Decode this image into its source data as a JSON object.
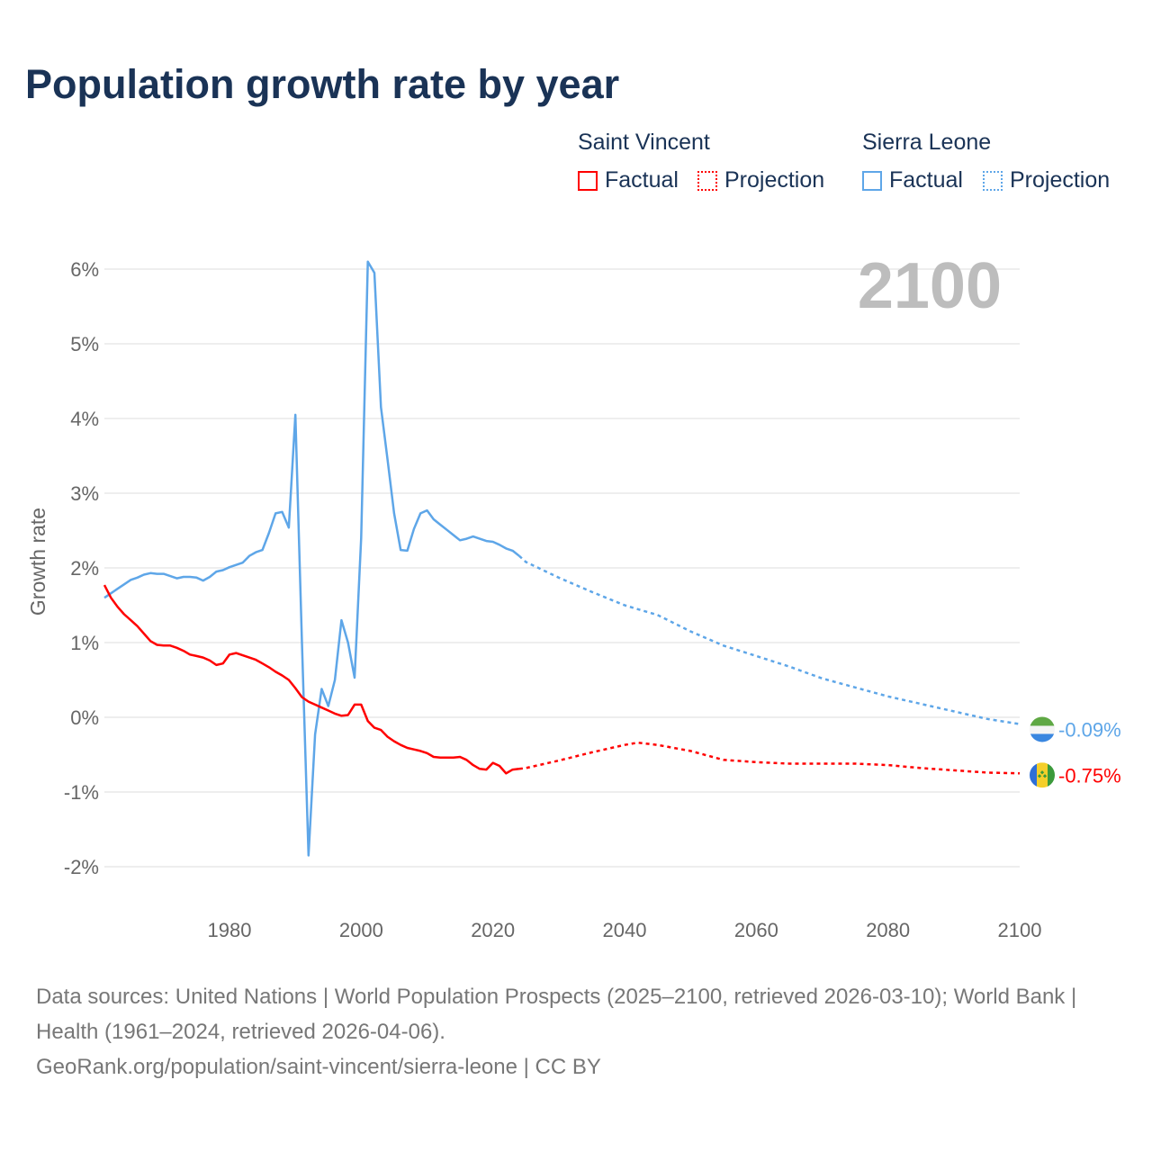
{
  "title": "Population growth rate by year",
  "legend": {
    "groups": [
      {
        "name": "Saint Vincent",
        "factual": "Factual",
        "projection": "Projection",
        "color": "#ff0000"
      },
      {
        "name": "Sierra Leone",
        "factual": "Factual",
        "projection": "Projection",
        "color": "#5ea6e8"
      }
    ]
  },
  "year_label": "2100",
  "source_lines": [
    "Data sources: United Nations | World Population Prospects (2025–2100, retrieved 2026-03-10); World Bank | Health (1961–2024, retrieved 2026-04-06).",
    "GeoRank.org/population/saint-vincent/sierra-leone | CC BY"
  ],
  "chart_data": {
    "type": "line",
    "title": "Population growth rate by year",
    "xlabel": "",
    "ylabel": "Growth rate",
    "xlim": [
      1961,
      2100
    ],
    "ylim": [
      -2.4,
      6.2
    ],
    "x_ticks": [
      1980,
      2000,
      2020,
      2040,
      2060,
      2080,
      2100
    ],
    "y_ticks": [
      -2,
      -1,
      0,
      1,
      2,
      3,
      4,
      5,
      6
    ],
    "y_tick_labels": [
      "-2%",
      "-1%",
      "0%",
      "1%",
      "2%",
      "3%",
      "4%",
      "5%",
      "6%"
    ],
    "grid": true,
    "legend_position": "top-right",
    "series": [
      {
        "name": "Sierra Leone",
        "color": "#5ea6e8",
        "end_label": "-0.09%",
        "factual": {
          "x": [
            1961,
            1962,
            1963,
            1964,
            1965,
            1966,
            1967,
            1968,
            1969,
            1970,
            1971,
            1972,
            1973,
            1974,
            1975,
            1976,
            1977,
            1978,
            1979,
            1980,
            1981,
            1982,
            1983,
            1984,
            1985,
            1986,
            1987,
            1988,
            1989,
            1990,
            1991,
            1992,
            1993,
            1994,
            1995,
            1996,
            1997,
            1998,
            1999,
            2000,
            2001,
            2002,
            2003,
            2004,
            2005,
            2006,
            2007,
            2008,
            2009,
            2010,
            2011,
            2012,
            2013,
            2014,
            2015,
            2016,
            2017,
            2018,
            2019,
            2020,
            2021,
            2022,
            2023,
            2024
          ],
          "y": [
            1.6,
            1.66,
            1.72,
            1.78,
            1.84,
            1.87,
            1.91,
            1.93,
            1.92,
            1.92,
            1.89,
            1.86,
            1.88,
            1.88,
            1.87,
            1.83,
            1.88,
            1.95,
            1.97,
            2.01,
            2.04,
            2.07,
            2.16,
            2.21,
            2.24,
            2.47,
            2.73,
            2.75,
            2.54,
            4.05,
            1.0,
            -1.85,
            -0.23,
            0.38,
            0.15,
            0.5,
            1.3,
            1.0,
            0.53,
            2.4,
            6.1,
            5.95,
            4.15,
            3.45,
            2.73,
            2.24,
            2.23,
            2.52,
            2.73,
            2.77,
            2.65,
            2.58,
            2.51,
            2.44,
            2.37,
            2.39,
            2.42,
            2.39,
            2.36,
            2.35,
            2.31,
            2.26,
            2.23,
            2.16
          ]
        },
        "projection": {
          "x": [
            2024,
            2025,
            2030,
            2035,
            2040,
            2045,
            2050,
            2055,
            2060,
            2065,
            2070,
            2075,
            2080,
            2085,
            2090,
            2095,
            2100
          ],
          "y": [
            2.16,
            2.08,
            1.87,
            1.68,
            1.5,
            1.37,
            1.15,
            0.96,
            0.82,
            0.68,
            0.52,
            0.4,
            0.28,
            0.18,
            0.08,
            -0.02,
            -0.09
          ]
        }
      },
      {
        "name": "Saint Vincent",
        "color": "#ff0000",
        "end_label": "-0.75%",
        "factual": {
          "x": [
            1961,
            1962,
            1963,
            1964,
            1965,
            1966,
            1967,
            1968,
            1969,
            1970,
            1971,
            1972,
            1973,
            1974,
            1975,
            1976,
            1977,
            1978,
            1979,
            1980,
            1981,
            1982,
            1983,
            1984,
            1985,
            1986,
            1987,
            1988,
            1989,
            1990,
            1991,
            1992,
            1993,
            1994,
            1995,
            1996,
            1997,
            1998,
            1999,
            2000,
            2001,
            2002,
            2003,
            2004,
            2005,
            2006,
            2007,
            2008,
            2009,
            2010,
            2011,
            2012,
            2013,
            2014,
            2015,
            2016,
            2017,
            2018,
            2019,
            2020,
            2021,
            2022,
            2023,
            2024
          ],
          "y": [
            1.77,
            1.6,
            1.48,
            1.38,
            1.3,
            1.22,
            1.12,
            1.02,
            0.97,
            0.96,
            0.96,
            0.93,
            0.89,
            0.84,
            0.82,
            0.8,
            0.76,
            0.7,
            0.72,
            0.84,
            0.86,
            0.83,
            0.8,
            0.77,
            0.72,
            0.67,
            0.61,
            0.56,
            0.5,
            0.39,
            0.27,
            0.21,
            0.17,
            0.13,
            0.09,
            0.05,
            0.02,
            0.03,
            0.17,
            0.17,
            -0.05,
            -0.14,
            -0.17,
            -0.26,
            -0.32,
            -0.37,
            -0.41,
            -0.43,
            -0.45,
            -0.48,
            -0.53,
            -0.54,
            -0.54,
            -0.54,
            -0.53,
            -0.57,
            -0.64,
            -0.69,
            -0.7,
            -0.61,
            -0.65,
            -0.75,
            -0.7,
            -0.69
          ]
        },
        "projection": {
          "x": [
            2024,
            2025,
            2030,
            2035,
            2040,
            2042,
            2045,
            2050,
            2055,
            2060,
            2065,
            2070,
            2075,
            2080,
            2085,
            2090,
            2095,
            2100
          ],
          "y": [
            -0.69,
            -0.68,
            -0.58,
            -0.47,
            -0.37,
            -0.34,
            -0.37,
            -0.45,
            -0.57,
            -0.6,
            -0.62,
            -0.62,
            -0.62,
            -0.64,
            -0.68,
            -0.71,
            -0.74,
            -0.75
          ]
        }
      }
    ]
  }
}
